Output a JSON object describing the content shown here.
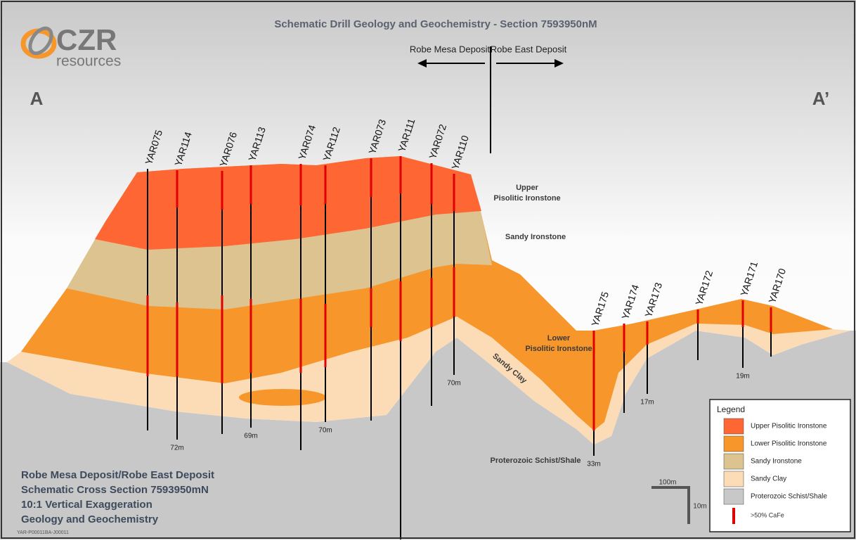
{
  "title": "Schematic Drill Geology and Geochemistry - Section 7593950nM",
  "logo": {
    "brand": "CZR",
    "sub": "resources"
  },
  "section": {
    "start": "A",
    "end": "A’"
  },
  "deposits": [
    "Robe Mesa Deposit",
    "Robe East Deposit"
  ],
  "holes": [
    {
      "name": "YAR075"
    },
    {
      "name": "YAR114",
      "depth": "72m"
    },
    {
      "name": "YAR076"
    },
    {
      "name": "YAR113",
      "depth": "69m"
    },
    {
      "name": "YAR074"
    },
    {
      "name": "YAR112",
      "depth": "70m"
    },
    {
      "name": "YAR073"
    },
    {
      "name": "YAR111"
    },
    {
      "name": "YAR072"
    },
    {
      "name": "YAR110",
      "depth": "70m"
    },
    {
      "name": "YAR175",
      "depth": "33m"
    },
    {
      "name": "YAR174"
    },
    {
      "name": "YAR173",
      "depth": "17m"
    },
    {
      "name": "YAR172"
    },
    {
      "name": "YAR171",
      "depth": "19m"
    },
    {
      "name": "YAR170"
    }
  ],
  "layer_labels": {
    "upper": [
      "Upper",
      "Pisolitic Ironstone"
    ],
    "sandy_ironstone": "Sandy Ironstone",
    "lower": [
      "Lower",
      "Pisolitic Ironstone"
    ],
    "sandy_clay": "Sandy Clay",
    "schist": "Proterozoic Schist/Shale"
  },
  "legend": {
    "title": "Legend",
    "items": [
      "Upper Pisolitic Ironstone",
      "Lower Pisolitic Ironstone",
      "Sandy Ironstone",
      "Sandy Clay",
      "Proterozoic Schist/Shale"
    ],
    "marker": ">50% CaFe"
  },
  "notes": [
    "Robe Mesa Deposit/Robe East Deposit",
    "Schematic Cross Section 7593950mN",
    "10:1 Vertical Exaggeration",
    "Geology and Geochemistry"
  ],
  "scale": {
    "horizontal": "100m",
    "vertical": "10m"
  },
  "footer_code": "YAR-P00011BA-J00011"
}
